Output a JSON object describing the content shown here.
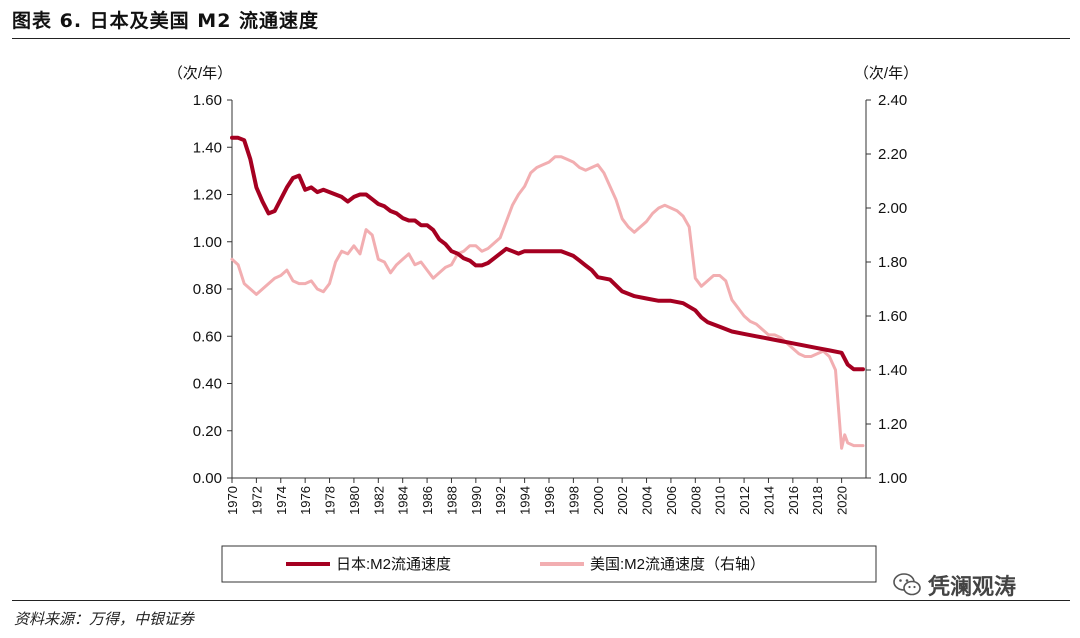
{
  "header": {
    "title": "图表 6. 日本及美国 M2 流通速度"
  },
  "footer": {
    "source": "资料来源：万得，中银证券",
    "watermark": "凭澜观涛"
  },
  "chart_data": {
    "type": "line",
    "title": "",
    "y_left": {
      "unit": "（次/年）",
      "ylim": [
        0,
        1.6
      ],
      "ticks": [
        "0.00",
        "0.20",
        "0.40",
        "0.60",
        "0.80",
        "1.00",
        "1.20",
        "1.40",
        "1.60"
      ]
    },
    "y_right": {
      "unit": "（次/年）",
      "ylim": [
        1.0,
        2.4
      ],
      "ticks": [
        "1.00",
        "1.20",
        "1.40",
        "1.60",
        "1.80",
        "2.00",
        "2.20",
        "2.40"
      ]
    },
    "x_ticks": [
      "1970",
      "1972",
      "1974",
      "1976",
      "1978",
      "1980",
      "1982",
      "1984",
      "1986",
      "1988",
      "1990",
      "1992",
      "1994",
      "1996",
      "1998",
      "2000",
      "2002",
      "2004",
      "2006",
      "2008",
      "2010",
      "2012",
      "2014",
      "2016",
      "2018",
      "2020"
    ],
    "xlim": [
      1970,
      2022
    ],
    "grid": false,
    "legend_position": "bottom",
    "series": [
      {
        "name": "日本:M2流通速度",
        "axis": "left",
        "color": "#a50021",
        "x": [
          1970,
          1970.5,
          1971,
          1971.5,
          1972,
          1972.5,
          1973,
          1973.5,
          1974,
          1974.5,
          1975,
          1975.5,
          1976,
          1976.5,
          1977,
          1977.5,
          1978,
          1978.5,
          1979,
          1979.5,
          1980,
          1980.5,
          1981,
          1981.5,
          1982,
          1982.5,
          1983,
          1983.5,
          1984,
          1984.5,
          1985,
          1985.5,
          1986,
          1986.5,
          1987,
          1987.5,
          1988,
          1988.5,
          1989,
          1989.5,
          1990,
          1990.5,
          1991,
          1991.5,
          1992,
          1992.5,
          1993,
          1993.5,
          1994,
          1995,
          1996,
          1997,
          1998,
          1998.5,
          1999,
          1999.5,
          2000,
          2001,
          2002,
          2003,
          2004,
          2005,
          2006,
          2007,
          2008,
          2008.5,
          2009,
          2010,
          2011,
          2012,
          2013,
          2014,
          2015,
          2016,
          2017,
          2018,
          2019,
          2020,
          2020.5,
          2021,
          2021.75
        ],
        "y": [
          1.44,
          1.44,
          1.43,
          1.35,
          1.23,
          1.17,
          1.12,
          1.13,
          1.18,
          1.23,
          1.27,
          1.28,
          1.22,
          1.23,
          1.21,
          1.22,
          1.21,
          1.2,
          1.19,
          1.17,
          1.19,
          1.2,
          1.2,
          1.18,
          1.16,
          1.15,
          1.13,
          1.12,
          1.1,
          1.09,
          1.09,
          1.07,
          1.07,
          1.05,
          1.01,
          0.99,
          0.96,
          0.95,
          0.93,
          0.92,
          0.9,
          0.9,
          0.91,
          0.93,
          0.95,
          0.97,
          0.96,
          0.95,
          0.96,
          0.96,
          0.96,
          0.96,
          0.94,
          0.92,
          0.9,
          0.88,
          0.85,
          0.84,
          0.79,
          0.77,
          0.76,
          0.75,
          0.75,
          0.74,
          0.71,
          0.68,
          0.66,
          0.64,
          0.62,
          0.61,
          0.6,
          0.59,
          0.58,
          0.57,
          0.56,
          0.55,
          0.54,
          0.53,
          0.48,
          0.46,
          0.46
        ]
      },
      {
        "name": "美国:M2流通速度（右轴）",
        "axis": "right",
        "color": "#f2aeb1",
        "x": [
          1970,
          1970.5,
          1971,
          1971.5,
          1972,
          1972.5,
          1973,
          1973.5,
          1974,
          1974.5,
          1975,
          1975.5,
          1976,
          1976.5,
          1977,
          1977.5,
          1978,
          1978.5,
          1979,
          1979.5,
          1980,
          1980.5,
          1981,
          1981.5,
          1982,
          1982.5,
          1983,
          1983.5,
          1984,
          1984.5,
          1985,
          1985.5,
          1986,
          1986.5,
          1987,
          1987.5,
          1988,
          1988.5,
          1989,
          1989.5,
          1990,
          1990.5,
          1991,
          1991.5,
          1992,
          1992.5,
          1993,
          1993.5,
          1994,
          1994.5,
          1995,
          1995.5,
          1996,
          1996.5,
          1997,
          1997.5,
          1998,
          1998.5,
          1999,
          1999.5,
          2000,
          2000.5,
          2001,
          2001.5,
          2002,
          2002.5,
          2003,
          2003.5,
          2004,
          2004.5,
          2005,
          2005.5,
          2006,
          2006.5,
          2007,
          2007.5,
          2008,
          2008.5,
          2009,
          2009.5,
          2010,
          2010.5,
          2011,
          2011.5,
          2012,
          2012.5,
          2013,
          2013.5,
          2014,
          2014.5,
          2015,
          2015.5,
          2016,
          2016.5,
          2017,
          2017.5,
          2018,
          2018.5,
          2019,
          2019.5,
          2020,
          2020.25,
          2020.5,
          2021,
          2021.75
        ],
        "y": [
          1.81,
          1.79,
          1.72,
          1.7,
          1.68,
          1.7,
          1.72,
          1.74,
          1.75,
          1.77,
          1.73,
          1.72,
          1.72,
          1.73,
          1.7,
          1.69,
          1.72,
          1.8,
          1.84,
          1.83,
          1.86,
          1.83,
          1.92,
          1.9,
          1.81,
          1.8,
          1.76,
          1.79,
          1.81,
          1.83,
          1.79,
          1.8,
          1.77,
          1.74,
          1.76,
          1.78,
          1.79,
          1.83,
          1.84,
          1.86,
          1.86,
          1.84,
          1.85,
          1.87,
          1.89,
          1.95,
          2.01,
          2.05,
          2.08,
          2.13,
          2.15,
          2.16,
          2.17,
          2.19,
          2.19,
          2.18,
          2.17,
          2.15,
          2.14,
          2.15,
          2.16,
          2.13,
          2.08,
          2.03,
          1.96,
          1.93,
          1.91,
          1.93,
          1.95,
          1.98,
          2.0,
          2.01,
          2.0,
          1.99,
          1.97,
          1.93,
          1.74,
          1.71,
          1.73,
          1.75,
          1.75,
          1.73,
          1.66,
          1.63,
          1.6,
          1.58,
          1.57,
          1.55,
          1.53,
          1.53,
          1.52,
          1.5,
          1.48,
          1.46,
          1.45,
          1.45,
          1.46,
          1.47,
          1.45,
          1.4,
          1.11,
          1.16,
          1.13,
          1.12,
          1.12
        ]
      }
    ]
  }
}
